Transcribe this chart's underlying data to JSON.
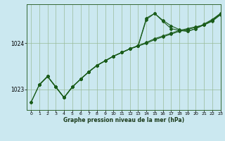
{
  "title": "Graphe pression niveau de la mer (hPa)",
  "background_color": "#cbe8f0",
  "grid_color": "#99bb99",
  "line_color": "#1a5c1a",
  "xlim": [
    -0.5,
    23
  ],
  "ylim": [
    1022.55,
    1024.85
  ],
  "yticks": [
    1023,
    1024
  ],
  "xticks": [
    0,
    1,
    2,
    3,
    4,
    5,
    6,
    7,
    8,
    9,
    10,
    11,
    12,
    13,
    14,
    15,
    16,
    17,
    18,
    19,
    20,
    21,
    22,
    23
  ],
  "line1_x": [
    0,
    1,
    2,
    3,
    4,
    5,
    6,
    7,
    8,
    9,
    10,
    11,
    12,
    13,
    14,
    15,
    16,
    17,
    18,
    19,
    20,
    21,
    22,
    23
  ],
  "line1_y": [
    1022.72,
    1023.1,
    1023.28,
    1023.05,
    1022.82,
    1023.05,
    1023.22,
    1023.38,
    1023.52,
    1023.62,
    1023.72,
    1023.8,
    1023.88,
    1023.94,
    1024.0,
    1024.08,
    1024.14,
    1024.2,
    1024.26,
    1024.3,
    1024.35,
    1024.4,
    1024.48,
    1024.62
  ],
  "line2_x": [
    0,
    1,
    2,
    3,
    4,
    5,
    6,
    7,
    8,
    9,
    10,
    11,
    12,
    13,
    14,
    15,
    16,
    17,
    18,
    19,
    20,
    21,
    22,
    23
  ],
  "line2_y": [
    1022.72,
    1023.1,
    1023.28,
    1023.05,
    1022.82,
    1023.05,
    1023.22,
    1023.38,
    1023.52,
    1023.62,
    1023.72,
    1023.8,
    1023.88,
    1023.94,
    1024.52,
    1024.65,
    1024.5,
    1024.38,
    1024.3,
    1024.26,
    1024.32,
    1024.4,
    1024.5,
    1024.65
  ],
  "line3_x": [
    1,
    2,
    3,
    4,
    5,
    6,
    7,
    8,
    9,
    10,
    11,
    12,
    13,
    14,
    15,
    16,
    17,
    18,
    19,
    20,
    21,
    22,
    23
  ],
  "line3_y": [
    1023.1,
    1023.28,
    1023.05,
    1022.82,
    1023.05,
    1023.22,
    1023.38,
    1023.52,
    1023.62,
    1023.72,
    1023.8,
    1023.88,
    1023.95,
    1024.02,
    1024.1,
    1024.16,
    1024.22,
    1024.28,
    1024.32,
    1024.36,
    1024.4,
    1024.5,
    1024.63
  ],
  "line4_x": [
    1,
    2,
    3,
    4,
    5,
    6,
    7,
    8,
    9,
    10,
    11,
    12,
    13,
    14,
    15,
    16,
    17,
    18,
    19,
    20,
    21,
    22,
    23
  ],
  "line4_y": [
    1023.1,
    1023.28,
    1023.05,
    1022.82,
    1023.05,
    1023.22,
    1023.38,
    1023.52,
    1023.62,
    1023.72,
    1023.8,
    1023.88,
    1023.95,
    1024.55,
    1024.65,
    1024.48,
    1024.32,
    1024.28,
    1024.26,
    1024.32,
    1024.42,
    1024.52,
    1024.65
  ]
}
